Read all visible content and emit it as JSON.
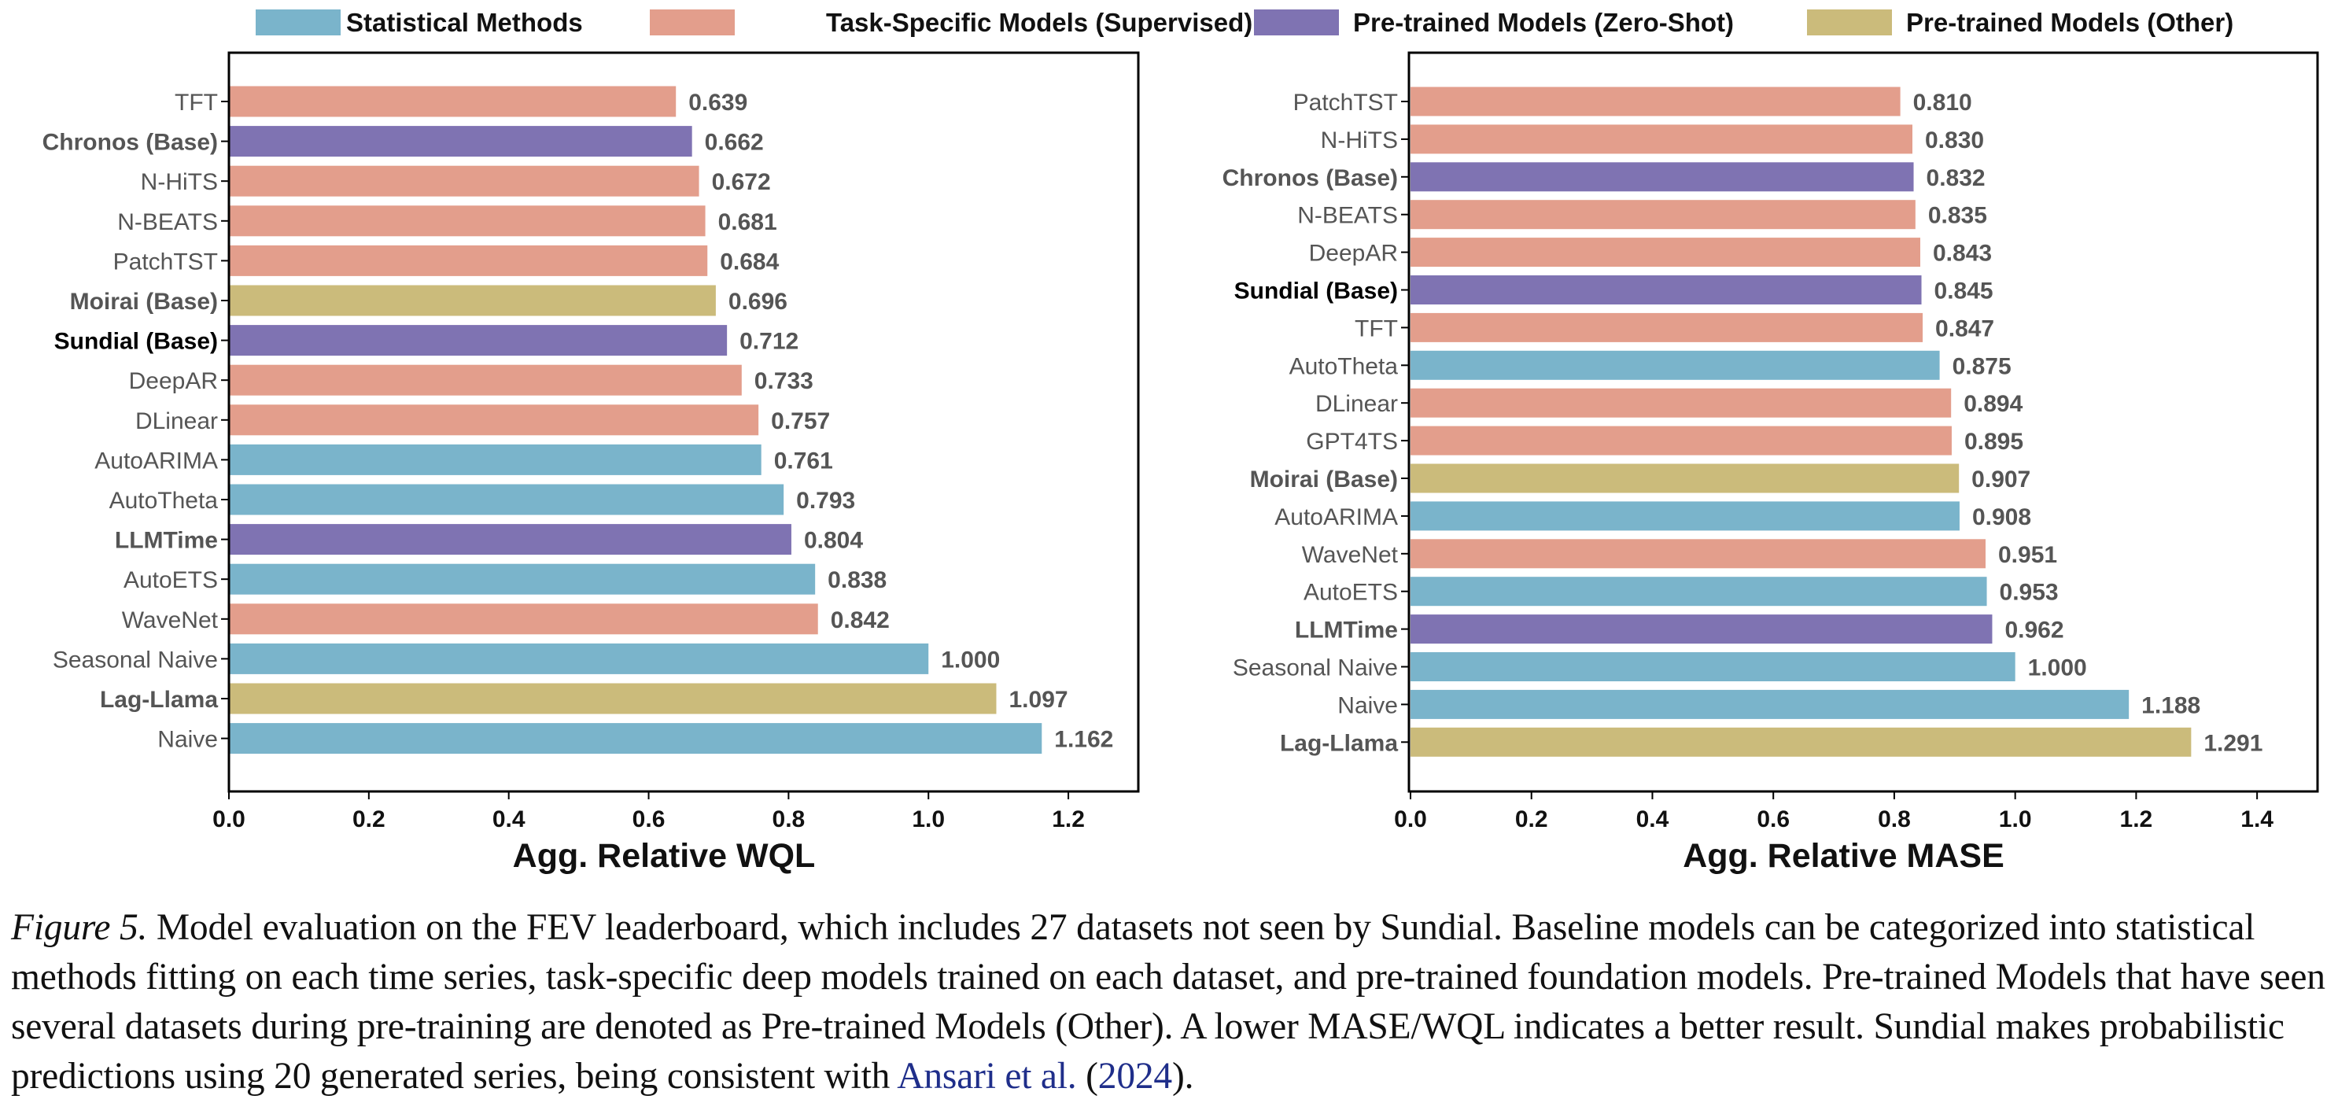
{
  "legend": [
    {
      "label": "Statistical Methods",
      "color": "#7ab4cb"
    },
    {
      "label": "Task-Specific Models (Supervised)",
      "color": "#e39e8c"
    },
    {
      "label": "Pre-trained Models (Zero-Shot)",
      "color": "#7f73b2"
    },
    {
      "label": "Pre-trained Models (Other)",
      "color": "#cbbb7b"
    }
  ],
  "chart_data": [
    {
      "type": "bar",
      "orientation": "horizontal",
      "xlabel": "Agg. Relative WQL",
      "xlim": [
        0,
        1.3
      ],
      "xticks": [
        "0.0",
        "0.2",
        "0.4",
        "0.6",
        "0.8",
        "1.0",
        "1.2"
      ],
      "grid": false,
      "categories": [
        "TFT",
        "Chronos (Base)",
        "N-HiTS",
        "N-BEATS",
        "PatchTST",
        "Moirai (Base)",
        "Sundial (Base)",
        "DeepAR",
        "DLinear",
        "AutoARIMA",
        "AutoTheta",
        "LLMTime",
        "AutoETS",
        "WaveNet",
        "Seasonal Naive",
        "Lag-Llama",
        "Naive"
      ],
      "values": [
        0.639,
        0.662,
        0.672,
        0.681,
        0.684,
        0.696,
        0.712,
        0.733,
        0.757,
        0.761,
        0.793,
        0.804,
        0.838,
        0.842,
        1.0,
        1.097,
        1.162
      ],
      "value_labels": [
        "0.639",
        "0.662",
        "0.672",
        "0.681",
        "0.684",
        "0.696",
        "0.712",
        "0.733",
        "0.757",
        "0.761",
        "0.793",
        "0.804",
        "0.838",
        "0.842",
        "1.000",
        "1.097",
        "1.162"
      ],
      "groups": [
        1,
        2,
        1,
        1,
        1,
        3,
        2,
        1,
        1,
        0,
        0,
        2,
        0,
        1,
        0,
        3,
        0
      ],
      "bold_labels": [
        "Chronos (Base)",
        "Moirai (Base)",
        "Sundial (Base)",
        "LLMTime",
        "Lag-Llama"
      ],
      "highlight_label": "Sundial (Base)"
    },
    {
      "type": "bar",
      "orientation": "horizontal",
      "xlabel": "Agg. Relative MASE",
      "xlim": [
        0,
        1.5
      ],
      "xticks": [
        "0.0",
        "0.2",
        "0.4",
        "0.6",
        "0.8",
        "1.0",
        "1.2",
        "1.4"
      ],
      "grid": false,
      "categories": [
        "PatchTST",
        "N-HiTS",
        "Chronos (Base)",
        "N-BEATS",
        "DeepAR",
        "Sundial (Base)",
        "TFT",
        "AutoTheta",
        "DLinear",
        "GPT4TS",
        "Moirai (Base)",
        "AutoARIMA",
        "WaveNet",
        "AutoETS",
        "LLMTime",
        "Seasonal Naive",
        "Naive",
        "Lag-Llama"
      ],
      "values": [
        0.81,
        0.83,
        0.832,
        0.835,
        0.843,
        0.845,
        0.847,
        0.875,
        0.894,
        0.895,
        0.907,
        0.908,
        0.951,
        0.953,
        0.962,
        1.0,
        1.188,
        1.291
      ],
      "value_labels": [
        "0.810",
        "0.830",
        "0.832",
        "0.835",
        "0.843",
        "0.845",
        "0.847",
        "0.875",
        "0.894",
        "0.895",
        "0.907",
        "0.908",
        "0.951",
        "0.953",
        "0.962",
        "1.000",
        "1.188",
        "1.291"
      ],
      "groups": [
        1,
        1,
        2,
        1,
        1,
        2,
        1,
        0,
        1,
        1,
        3,
        0,
        1,
        0,
        2,
        0,
        0,
        3
      ],
      "bold_labels": [
        "Chronos (Base)",
        "Sundial (Base)",
        "Moirai (Base)",
        "LLMTime",
        "Lag-Llama"
      ],
      "highlight_label": "Sundial (Base)"
    }
  ],
  "caption": {
    "label": "Figure 5.",
    "text": " Model evaluation on the FEV leaderboard, which includes 27 datasets not seen by Sundial. Baseline models can be categorized into statistical methods fitting on each time series, task-specific deep models trained on each dataset, and pre-trained foundation models. Pre-trained Models that have seen several datasets during pre-training are denoted as Pre-trained Models (Other). A lower MASE/WQL indicates a better result. Sundial makes probabilistic predictions using 20 generated series, being consistent with ",
    "cite_author": "Ansari et al.",
    "cite_open": " (",
    "cite_year": "2024",
    "cite_close": ")."
  }
}
